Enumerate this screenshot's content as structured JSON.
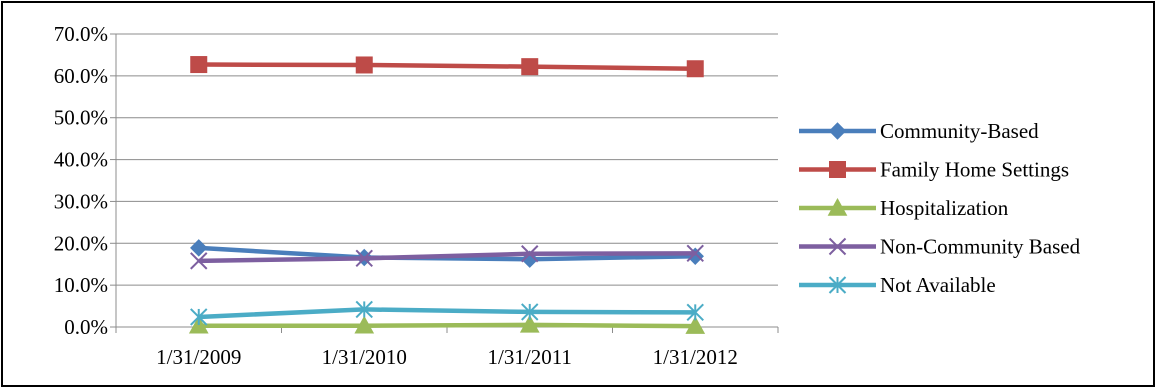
{
  "chart_data": {
    "type": "line",
    "title": "",
    "xlabel": "",
    "ylabel": "",
    "categories": [
      "1/31/2009",
      "1/31/2010",
      "1/31/2011",
      "1/31/2012"
    ],
    "ylim": [
      0,
      70
    ],
    "yticks": [
      0,
      10,
      20,
      30,
      40,
      50,
      60,
      70
    ],
    "ytick_labels": [
      "0.0%",
      "10.0%",
      "20.0%",
      "30.0%",
      "40.0%",
      "50.0%",
      "60.0%",
      "70.0%"
    ],
    "grid": "horizontal",
    "legend_position": "right",
    "series": [
      {
        "name": "Community-Based",
        "values": [
          18.9,
          16.6,
          16.2,
          16.9
        ],
        "color": "#4a7ebb",
        "marker": "diamond"
      },
      {
        "name": "Family Home Settings",
        "values": [
          62.7,
          62.6,
          62.2,
          61.7
        ],
        "color": "#be4b48",
        "marker": "square"
      },
      {
        "name": "Hospitalization",
        "values": [
          0.3,
          0.3,
          0.5,
          0.2
        ],
        "color": "#9bbb59",
        "marker": "triangle"
      },
      {
        "name": "Non-Community Based",
        "values": [
          15.8,
          16.4,
          17.5,
          17.6
        ],
        "color": "#7d5fa0",
        "marker": "x"
      },
      {
        "name": "Not Available",
        "values": [
          2.4,
          4.2,
          3.6,
          3.5
        ],
        "color": "#4bacc6",
        "marker": "star"
      }
    ]
  }
}
